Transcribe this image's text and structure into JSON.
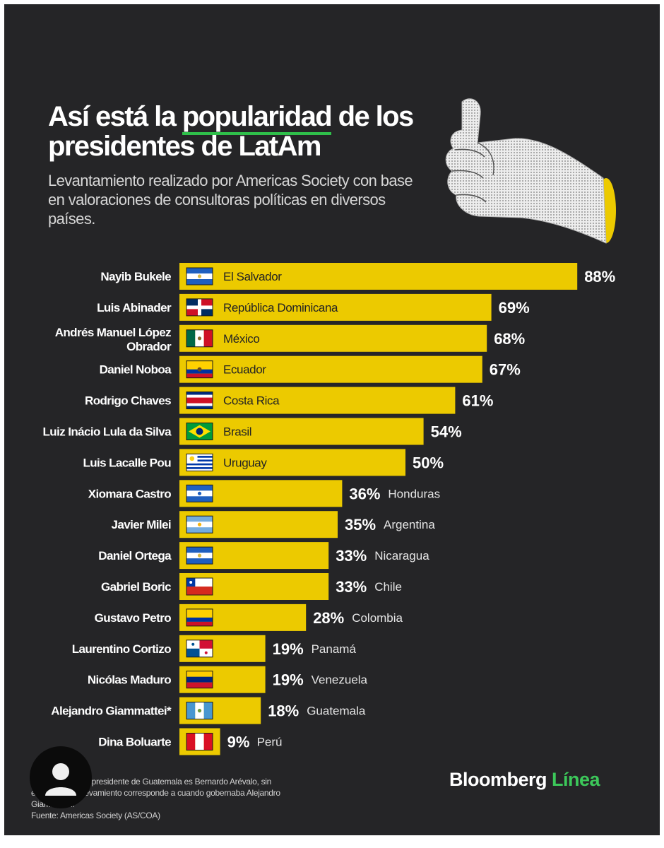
{
  "header": {
    "title_pre": "Así está la ",
    "title_highlight": "popularidad",
    "title_post": " de los presidentes de LatAm",
    "subtitle": "Levantamiento realizado por Americas Society con base en valoraciones de consultoras políticas en diversos países."
  },
  "chart_data": {
    "type": "bar",
    "orientation": "horizontal",
    "unit": "%",
    "bar_color": "#ecca00",
    "xlim": [
      0,
      100
    ],
    "grid": false,
    "rows": [
      {
        "president": "Nayib Bukele",
        "country": "El Salvador",
        "value": 88,
        "value_label": "88%",
        "flag": "el-salvador"
      },
      {
        "president": "Luis Abinader",
        "country": "República Dominicana",
        "value": 69,
        "value_label": "69%",
        "flag": "dominican-republic"
      },
      {
        "president": "Andrés Manuel López Obrador",
        "country": "México",
        "value": 68,
        "value_label": "68%",
        "flag": "mexico"
      },
      {
        "president": "Daniel Noboa",
        "country": "Ecuador",
        "value": 67,
        "value_label": "67%",
        "flag": "ecuador"
      },
      {
        "president": "Rodrigo Chaves",
        "country": "Costa Rica",
        "value": 61,
        "value_label": "61%",
        "flag": "costa-rica"
      },
      {
        "president": "Luiz Inácio Lula da Silva",
        "country": "Brasil",
        "value": 54,
        "value_label": "54%",
        "flag": "brazil"
      },
      {
        "president": "Luis Lacalle Pou",
        "country": "Uruguay",
        "value": 50,
        "value_label": "50%",
        "flag": "uruguay"
      },
      {
        "president": "Xiomara Castro",
        "country": "Honduras",
        "value": 36,
        "value_label": "36%",
        "flag": "honduras"
      },
      {
        "president": "Javier Milei",
        "country": "Argentina",
        "value": 35,
        "value_label": "35%",
        "flag": "argentina"
      },
      {
        "president": "Daniel Ortega",
        "country": "Nicaragua",
        "value": 33,
        "value_label": "33%",
        "flag": "nicaragua"
      },
      {
        "president": "Gabriel Boric",
        "country": "Chile",
        "value": 33,
        "value_label": "33%",
        "flag": "chile"
      },
      {
        "president": "Gustavo Petro",
        "country": "Colombia",
        "value": 28,
        "value_label": "28%",
        "flag": "colombia"
      },
      {
        "president": "Laurentino Cortizo",
        "country": "Panamá",
        "value": 19,
        "value_label": "19%",
        "flag": "panama"
      },
      {
        "president": "Nicólas Maduro",
        "country": "Venezuela",
        "value": 19,
        "value_label": "19%",
        "flag": "venezuela"
      },
      {
        "president": "Alejandro Giammattei*",
        "country": "Guatemala",
        "value": 18,
        "value_label": "18%",
        "flag": "guatemala"
      },
      {
        "president": "Dina Boluarte",
        "country": "Perú",
        "value": 9,
        "value_label": "9%",
        "flag": "peru"
      }
    ]
  },
  "footer": {
    "note": "*Actualmente, el presidente de Guatemala es Bernardo Arévalo, sin embargo, el relevamiento corresponde a cuando gobernaba Alejandro Giammattei.",
    "source": "Fuente: Americas Society (AS/COA)",
    "brand_main": "Bloomberg",
    "brand_accent": "Línea"
  },
  "colors": {
    "background": "#252527",
    "bar": "#ecca00",
    "accent": "#3cc85a",
    "text": "#ffffff"
  },
  "icons": [
    "thumbs-up-icon",
    "user-avatar-icon"
  ]
}
